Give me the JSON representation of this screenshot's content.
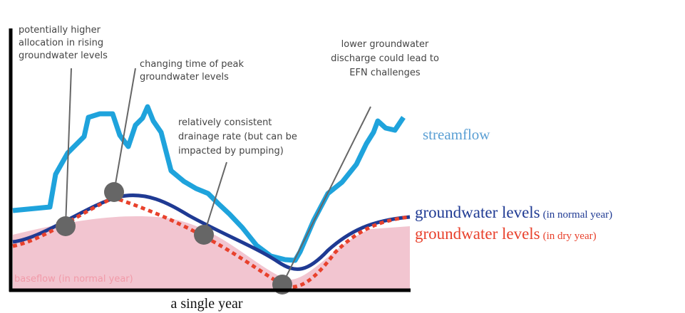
{
  "annotations": [
    {
      "lines": [
        "potentially higher",
        "allocation in rising",
        "groundwater levels"
      ]
    },
    {
      "lines": [
        "changing time of peak",
        "groundwater levels"
      ]
    },
    {
      "lines": [
        "relatively consistent",
        "drainage rate (but can be",
        "impacted by pumping)"
      ]
    },
    {
      "lines": [
        "lower groundwater",
        "discharge could lead to",
        "EFN challenges"
      ]
    }
  ],
  "labels": {
    "streamflow": "streamflow",
    "normal_main": "groundwater levels",
    "normal_note": "(in normal year)",
    "dry_main": "groundwater levels",
    "dry_note": "(in dry year)",
    "baseflow": "baseflow (in normal year)",
    "x_axis": "a single year"
  }
}
